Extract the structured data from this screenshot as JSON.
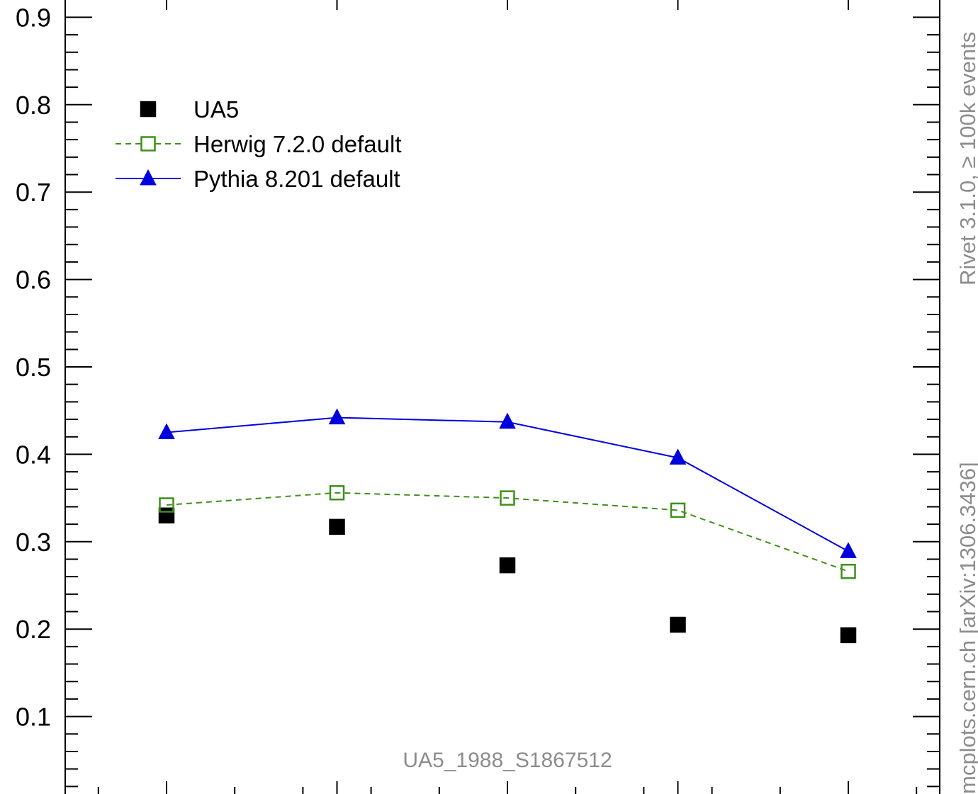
{
  "chart_data": {
    "type": "scatter",
    "title": "",
    "xlabel": "",
    "ylabel": "",
    "ylim": [
      0,
      0.9
    ],
    "x": [
      1,
      2,
      3,
      4,
      5
    ],
    "yticks": [
      "0.9",
      "0.8",
      "0.7",
      "0.6",
      "0.5",
      "0.4",
      "0.3",
      "0.2",
      "0.1"
    ],
    "ytick_values": [
      0.9,
      0.8,
      0.7,
      0.6,
      0.5,
      0.4,
      0.3,
      0.2,
      0.1
    ],
    "legend_position": "top-left",
    "series": [
      {
        "name": "UA5",
        "style": "markers",
        "marker": "filled-square",
        "color": "#000000",
        "y": [
          0.33,
          0.317,
          0.273,
          0.205,
          0.193
        ]
      },
      {
        "name": "Herwig 7.2.0 default",
        "style": "dashed-line",
        "marker": "open-square",
        "color": "#3f8f1a",
        "y": [
          0.342,
          0.356,
          0.35,
          0.336,
          0.266
        ]
      },
      {
        "name": "Pythia 8.201 default",
        "style": "solid-line",
        "marker": "filled-triangle",
        "color": "#0000dd",
        "y": [
          0.425,
          0.442,
          0.437,
          0.396,
          0.289
        ]
      }
    ],
    "annotation": "UA5_1988_S1867512",
    "side_label_top": "Rivet 3.1.0, ≥ 100k events",
    "side_label_bottom": "mcplots.cern.ch [arXiv:1306.3436]"
  }
}
